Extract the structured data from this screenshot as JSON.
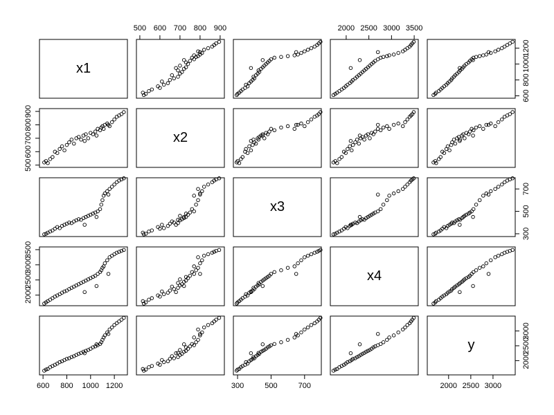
{
  "chart_data": {
    "type": "pairs",
    "variables": [
      {
        "name": "x1",
        "lim": [
          570,
          1310
        ],
        "ticks": [
          600,
          800,
          1000,
          1200
        ],
        "values": [
          610,
          625,
          640,
          660,
          680,
          700,
          720,
          740,
          760,
          780,
          800,
          820,
          840,
          860,
          880,
          900,
          920,
          940,
          960,
          980,
          1000,
          1020,
          1040,
          1060,
          1080,
          1090,
          1100,
          1110,
          1120,
          1140,
          1160,
          1180,
          1200,
          1220,
          1240,
          1260,
          1280,
          1050,
          950,
          1150
        ]
      },
      {
        "name": "x2",
        "lim": [
          483,
          921
        ],
        "ticks": [
          500,
          600,
          700,
          800,
          900
        ],
        "values": [
          520,
          530,
          515,
          545,
          560,
          600,
          590,
          620,
          640,
          610,
          650,
          670,
          690,
          660,
          700,
          710,
          690,
          720,
          730,
          700,
          740,
          730,
          750,
          770,
          760,
          780,
          790,
          770,
          800,
          810,
          790,
          820,
          840,
          860,
          870,
          880,
          895,
          720,
          680,
          800
        ]
      },
      {
        "name": "x3",
        "lim": [
          275,
          800
        ],
        "ticks": [
          300,
          500,
          700
        ],
        "values": [
          295,
          300,
          310,
          320,
          330,
          345,
          360,
          350,
          370,
          380,
          390,
          400,
          395,
          410,
          420,
          430,
          425,
          440,
          450,
          460,
          470,
          480,
          490,
          500,
          520,
          560,
          600,
          640,
          660,
          680,
          700,
          720,
          740,
          760,
          775,
          785,
          795,
          450,
          380,
          650
        ]
      },
      {
        "name": "x4",
        "lim": [
          1650,
          3590
        ],
        "ticks": [
          2000,
          2500,
          3000,
          3500
        ],
        "values": [
          1720,
          1760,
          1800,
          1850,
          1900,
          1950,
          1990,
          2030,
          2080,
          2120,
          2150,
          2200,
          2240,
          2280,
          2320,
          2360,
          2400,
          2440,
          2480,
          2520,
          2560,
          2600,
          2640,
          2700,
          2760,
          2820,
          2900,
          2950,
          3050,
          3150,
          3250,
          3300,
          3350,
          3400,
          3430,
          3460,
          3490,
          2300,
          2100,
          2700
        ]
      },
      {
        "name": "y",
        "lim": [
          1520,
          3500
        ],
        "ticks": [
          2000,
          2500,
          3000
        ],
        "values": [
          1660,
          1700,
          1720,
          1780,
          1820,
          1860,
          1900,
          1950,
          1980,
          2020,
          2060,
          2080,
          2120,
          2150,
          2190,
          2230,
          2260,
          2300,
          2330,
          2360,
          2400,
          2450,
          2480,
          2520,
          2560,
          2620,
          2700,
          2780,
          2850,
          2950,
          3050,
          3120,
          3200,
          3260,
          3320,
          3380,
          3440,
          2550,
          2250,
          2900
        ]
      }
    ]
  }
}
